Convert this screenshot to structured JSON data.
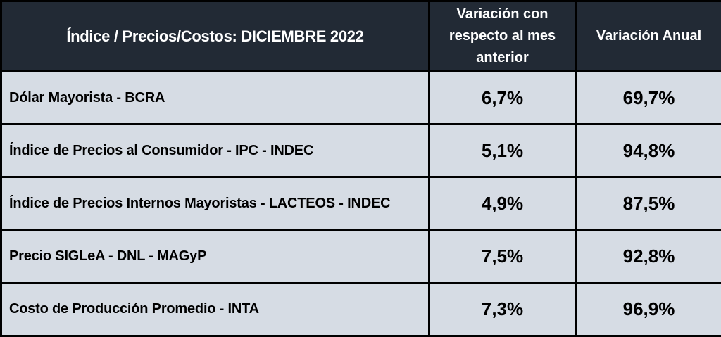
{
  "header": {
    "index_label": "Índice / Precios/Costos: DICIEMBRE 2022",
    "monthly_label_lines": [
      "Variación con",
      "respecto al mes",
      "anterior"
    ],
    "annual_label": "Variación Anual"
  },
  "rows": [
    {
      "name": "Dólar Mayorista - BCRA",
      "monthly": "6,7%",
      "annual": "69,7%"
    },
    {
      "name": "Índice de Precios al Consumidor - IPC - INDEC",
      "monthly": "5,1%",
      "annual": "94,8%"
    },
    {
      "name": "Índice de Precios Internos Mayoristas - LACTEOS - INDEC",
      "monthly": "4,9%",
      "annual": "87,5%"
    },
    {
      "name": "Precio SIGLeA - DNL - MAGyP",
      "monthly": "7,5%",
      "annual": "92,8%"
    },
    {
      "name": "Costo de Producción Promedio - INTA",
      "monthly": "7,3%",
      "annual": "96,9%"
    }
  ],
  "colors": {
    "header_background": "#222a35",
    "row_background": "#d6dce4",
    "border": "#000000"
  }
}
